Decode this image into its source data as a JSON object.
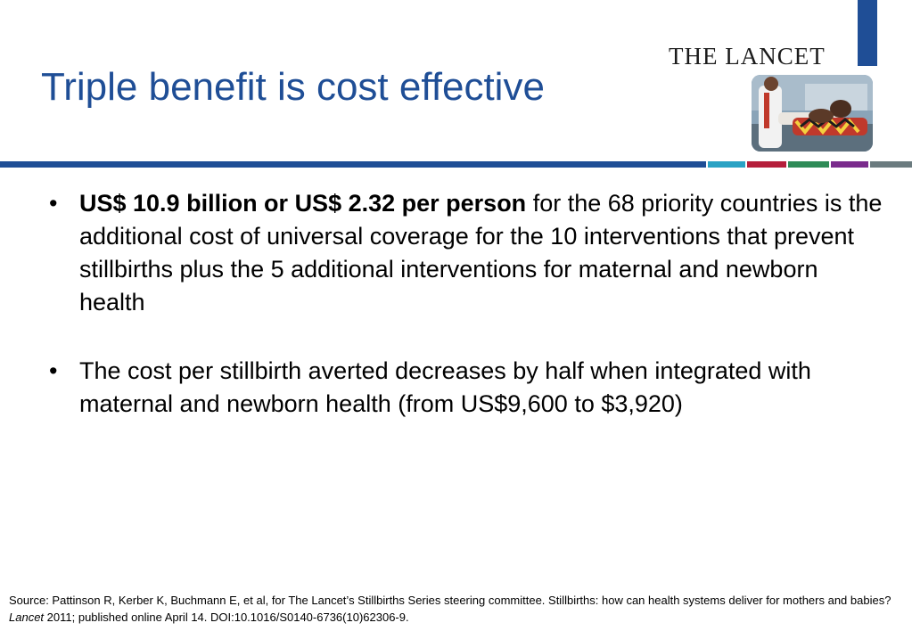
{
  "slide": {
    "title": "Triple benefit is cost effective"
  },
  "logo": {
    "text": "THE LANCET"
  },
  "colors": {
    "title": "#1f4e96",
    "rule_main": "#1f4e96",
    "rule_accents": [
      "#2aa2c4",
      "#b51f3b",
      "#2e8b57",
      "#7a2b8c",
      "#6b7b7f"
    ]
  },
  "bullets": [
    {
      "bold": "US$ 10.9 billion or US$ 2.32 per person",
      "text": " for the 68 priority countries is the additional cost of universal coverage for the 10 interventions that prevent stillbirths plus the 5 additional interventions for maternal and newborn health"
    },
    {
      "bold": "",
      "text": "The cost per stillbirth averted decreases by half when integrated with maternal and newborn health (from US$9,600 to $3,920)"
    }
  ],
  "source": {
    "prefix": "Source: Pattinson R, Kerber K, Buchmann E, et al, for The Lancet’s Stillbirths Series steering committee. Stillbirths: how can health systems deliver for mothers and babies? ",
    "journal": "Lancet",
    "suffix": " 2011; published online April 14. DOI:10.1016/S0140-6736(10)62306-9."
  }
}
